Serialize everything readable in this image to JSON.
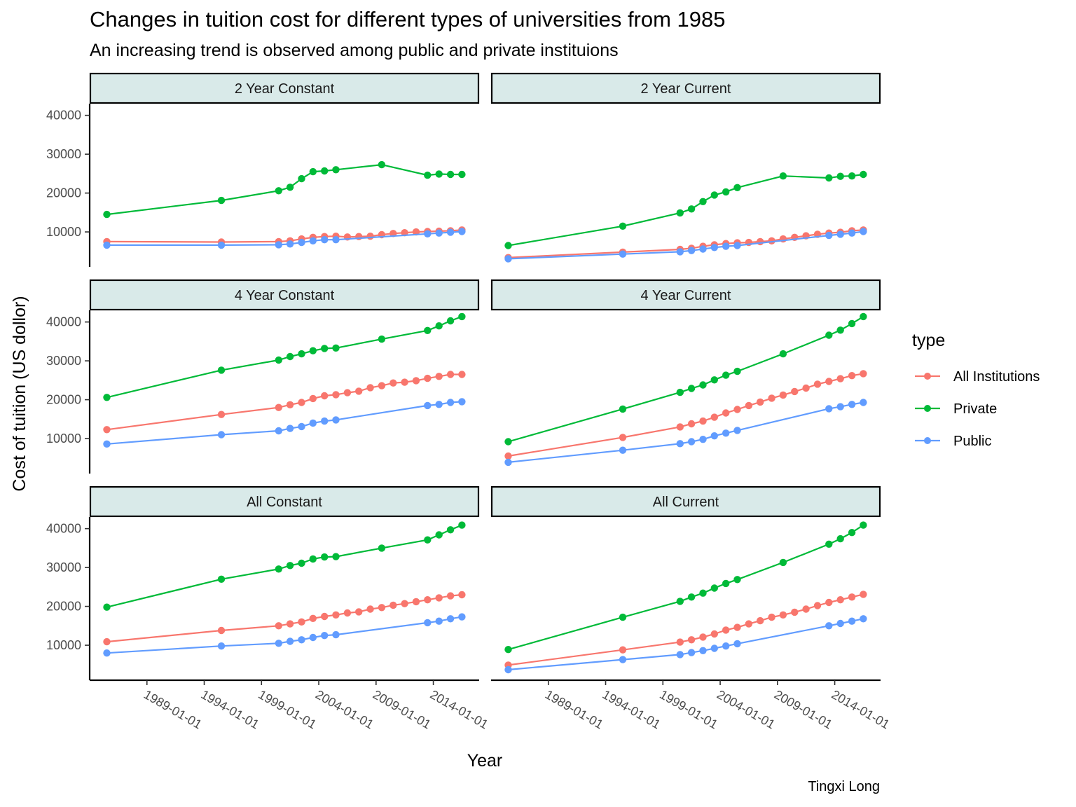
{
  "chart_data": {
    "type": "line",
    "title": "Changes in tuition cost for different types of universities from 1985",
    "subtitle": "An increasing trend is observed among public and private instituions",
    "xlabel": "Year",
    "ylabel": "Cost of tuition (US dollor)",
    "caption": "Tingxi Long",
    "x_ticks": [
      "1989-01-01",
      "1994-01-01",
      "1999-01-01",
      "2004-01-01",
      "2009-01-01",
      "2014-01-01"
    ],
    "y_ticks": [
      10000,
      20000,
      30000,
      40000
    ],
    "ylim": [
      1000,
      43000
    ],
    "xlim": [
      "1984-01-01",
      "2018-01-01"
    ],
    "grid": false,
    "legend": {
      "title": "type",
      "position": "right",
      "entries": [
        "All Institutions",
        "Private",
        "Public"
      ],
      "colors": {
        "All Institutions": "#F8766D",
        "Private": "#00BA38",
        "Public": "#619CFF"
      }
    },
    "panels": [
      {
        "name": "2 Year Constant",
        "series": [
          {
            "name": "All Institutions",
            "x": [
              "1985-07-01",
              "1995-07-01",
              "2000-07-01",
              "2001-07-01",
              "2002-07-01",
              "2003-07-01",
              "2004-07-01",
              "2005-07-01",
              "2006-07-01",
              "2007-07-01",
              "2008-07-01",
              "2009-07-01",
              "2010-07-01",
              "2011-07-01",
              "2012-07-01",
              "2013-07-01",
              "2014-07-01",
              "2015-07-01",
              "2016-07-01"
            ],
            "y": [
              7500,
              7400,
              7500,
              7700,
              8200,
              8600,
              8800,
              8900,
              8700,
              8800,
              8900,
              9300,
              9600,
              9800,
              10000,
              10100,
              10200,
              10300,
              10500
            ]
          },
          {
            "name": "Private",
            "x": [
              "1985-07-01",
              "1995-07-01",
              "2000-07-01",
              "2001-07-01",
              "2002-07-01",
              "2003-07-01",
              "2004-07-01",
              "2005-07-01",
              "2009-07-01",
              "2013-07-01",
              "2014-07-01",
              "2015-07-01",
              "2016-07-01"
            ],
            "y": [
              14500,
              18100,
              20600,
              21500,
              23700,
              25500,
              25700,
              26000,
              27300,
              24600,
              24900,
              24800,
              24800
            ]
          },
          {
            "name": "Public",
            "x": [
              "1985-07-01",
              "1995-07-01",
              "2000-07-01",
              "2001-07-01",
              "2002-07-01",
              "2003-07-01",
              "2004-07-01",
              "2005-07-01",
              "2013-07-01",
              "2014-07-01",
              "2015-07-01",
              "2016-07-01"
            ],
            "y": [
              6600,
              6600,
              6700,
              6900,
              7300,
              7700,
              8000,
              8000,
              9500,
              9700,
              9900,
              10100
            ]
          }
        ]
      },
      {
        "name": "2 Year Current",
        "series": [
          {
            "name": "All Institutions",
            "x": [
              "1985-07-01",
              "1995-07-01",
              "2000-07-01",
              "2001-07-01",
              "2002-07-01",
              "2003-07-01",
              "2004-07-01",
              "2005-07-01",
              "2006-07-01",
              "2007-07-01",
              "2008-07-01",
              "2009-07-01",
              "2010-07-01",
              "2011-07-01",
              "2012-07-01",
              "2013-07-01",
              "2014-07-01",
              "2015-07-01",
              "2016-07-01"
            ],
            "y": [
              3400,
              4800,
              5500,
              5800,
              6300,
              6700,
              7000,
              7200,
              7300,
              7500,
              7700,
              8200,
              8600,
              9000,
              9400,
              9700,
              9900,
              10300,
              10500
            ]
          },
          {
            "name": "Private",
            "x": [
              "1985-07-01",
              "1995-07-01",
              "2000-07-01",
              "2001-07-01",
              "2002-07-01",
              "2003-07-01",
              "2004-07-01",
              "2005-07-01",
              "2009-07-01",
              "2013-07-01",
              "2014-07-01",
              "2015-07-01",
              "2016-07-01"
            ],
            "y": [
              6500,
              11500,
              14900,
              15900,
              17800,
              19500,
              20300,
              21400,
              24400,
              23900,
              24300,
              24400,
              24800
            ]
          },
          {
            "name": "Public",
            "x": [
              "1985-07-01",
              "1995-07-01",
              "2000-07-01",
              "2001-07-01",
              "2002-07-01",
              "2003-07-01",
              "2004-07-01",
              "2005-07-01",
              "2013-07-01",
              "2014-07-01",
              "2015-07-01",
              "2016-07-01"
            ],
            "y": [
              3100,
              4300,
              4900,
              5200,
              5600,
              6000,
              6300,
              6500,
              9100,
              9400,
              9700,
              10100
            ]
          }
        ]
      },
      {
        "name": "4 Year Constant",
        "series": [
          {
            "name": "All Institutions",
            "x": [
              "1985-07-01",
              "1995-07-01",
              "2000-07-01",
              "2001-07-01",
              "2002-07-01",
              "2003-07-01",
              "2004-07-01",
              "2005-07-01",
              "2006-07-01",
              "2007-07-01",
              "2008-07-01",
              "2009-07-01",
              "2010-07-01",
              "2011-07-01",
              "2012-07-01",
              "2013-07-01",
              "2014-07-01",
              "2015-07-01",
              "2016-07-01"
            ],
            "y": [
              12300,
              16200,
              18000,
              18700,
              19300,
              20300,
              21000,
              21300,
              21800,
              22200,
              23100,
              23600,
              24300,
              24500,
              24900,
              25500,
              26000,
              26500,
              26500
            ]
          },
          {
            "name": "Private",
            "x": [
              "1985-07-01",
              "1995-07-01",
              "2000-07-01",
              "2001-07-01",
              "2002-07-01",
              "2003-07-01",
              "2004-07-01",
              "2005-07-01",
              "2009-07-01",
              "2013-07-01",
              "2014-07-01",
              "2015-07-01",
              "2016-07-01"
            ],
            "y": [
              20600,
              27600,
              30200,
              31100,
              31800,
              32600,
              33200,
              33300,
              35600,
              37800,
              39000,
              40300,
              41400
            ]
          },
          {
            "name": "Public",
            "x": [
              "1985-07-01",
              "1995-07-01",
              "2000-07-01",
              "2001-07-01",
              "2002-07-01",
              "2003-07-01",
              "2004-07-01",
              "2005-07-01",
              "2013-07-01",
              "2014-07-01",
              "2015-07-01",
              "2016-07-01"
            ],
            "y": [
              8600,
              11000,
              12000,
              12600,
              13100,
              14000,
              14500,
              14800,
              18500,
              18800,
              19300,
              19500
            ]
          }
        ]
      },
      {
        "name": "4 Year Current",
        "series": [
          {
            "name": "All Institutions",
            "x": [
              "1985-07-01",
              "1995-07-01",
              "2000-07-01",
              "2001-07-01",
              "2002-07-01",
              "2003-07-01",
              "2004-07-01",
              "2005-07-01",
              "2006-07-01",
              "2007-07-01",
              "2008-07-01",
              "2009-07-01",
              "2010-07-01",
              "2011-07-01",
              "2012-07-01",
              "2013-07-01",
              "2014-07-01",
              "2015-07-01",
              "2016-07-01"
            ],
            "y": [
              5500,
              10300,
              13000,
              13800,
              14500,
              15500,
              16600,
              17500,
              18500,
              19400,
              20400,
              21200,
              22100,
              23000,
              24000,
              24700,
              25400,
              26200,
              26700
            ]
          },
          {
            "name": "Private",
            "x": [
              "1985-07-01",
              "1995-07-01",
              "2000-07-01",
              "2001-07-01",
              "2002-07-01",
              "2003-07-01",
              "2004-07-01",
              "2005-07-01",
              "2009-07-01",
              "2013-07-01",
              "2014-07-01",
              "2015-07-01",
              "2016-07-01"
            ],
            "y": [
              9200,
              17600,
              21900,
              22900,
              23800,
              25100,
              26300,
              27300,
              31800,
              36600,
              37900,
              39600,
              41400
            ]
          },
          {
            "name": "Public",
            "x": [
              "1985-07-01",
              "1995-07-01",
              "2000-07-01",
              "2001-07-01",
              "2002-07-01",
              "2003-07-01",
              "2004-07-01",
              "2005-07-01",
              "2013-07-01",
              "2014-07-01",
              "2015-07-01",
              "2016-07-01"
            ],
            "y": [
              3900,
              7000,
              8700,
              9200,
              9800,
              10700,
              11400,
              12100,
              17700,
              18200,
              18800,
              19300
            ]
          }
        ]
      },
      {
        "name": "All Constant",
        "series": [
          {
            "name": "All Institutions",
            "x": [
              "1985-07-01",
              "1995-07-01",
              "2000-07-01",
              "2001-07-01",
              "2002-07-01",
              "2003-07-01",
              "2004-07-01",
              "2005-07-01",
              "2006-07-01",
              "2007-07-01",
              "2008-07-01",
              "2009-07-01",
              "2010-07-01",
              "2011-07-01",
              "2012-07-01",
              "2013-07-01",
              "2014-07-01",
              "2015-07-01",
              "2016-07-01"
            ],
            "y": [
              10900,
              13800,
              15000,
              15500,
              16000,
              16900,
              17400,
              17800,
              18300,
              18600,
              19300,
              19700,
              20300,
              20700,
              21200,
              21700,
              22200,
              22700,
              23000
            ]
          },
          {
            "name": "Private",
            "x": [
              "1985-07-01",
              "1995-07-01",
              "2000-07-01",
              "2001-07-01",
              "2002-07-01",
              "2003-07-01",
              "2004-07-01",
              "2005-07-01",
              "2009-07-01",
              "2013-07-01",
              "2014-07-01",
              "2015-07-01",
              "2016-07-01"
            ],
            "y": [
              19800,
              27000,
              29600,
              30500,
              31100,
              32200,
              32700,
              32800,
              35000,
              37100,
              38400,
              39700,
              40900
            ]
          },
          {
            "name": "Public",
            "x": [
              "1985-07-01",
              "1995-07-01",
              "2000-07-01",
              "2001-07-01",
              "2002-07-01",
              "2003-07-01",
              "2004-07-01",
              "2005-07-01",
              "2013-07-01",
              "2014-07-01",
              "2015-07-01",
              "2016-07-01"
            ],
            "y": [
              8000,
              9800,
              10500,
              11000,
              11400,
              12000,
              12500,
              12700,
              15800,
              16200,
              16800,
              17300
            ]
          }
        ]
      },
      {
        "name": "All Current",
        "series": [
          {
            "name": "All Institutions",
            "x": [
              "1985-07-01",
              "1995-07-01",
              "2000-07-01",
              "2001-07-01",
              "2002-07-01",
              "2003-07-01",
              "2004-07-01",
              "2005-07-01",
              "2006-07-01",
              "2007-07-01",
              "2008-07-01",
              "2009-07-01",
              "2010-07-01",
              "2011-07-01",
              "2012-07-01",
              "2013-07-01",
              "2014-07-01",
              "2015-07-01",
              "2016-07-01"
            ],
            "y": [
              4900,
              8800,
              10800,
              11400,
              12100,
              12900,
              13900,
              14600,
              15500,
              16300,
              17200,
              17800,
              18500,
              19300,
              20200,
              21000,
              21700,
              22400,
              23100
            ]
          },
          {
            "name": "Private",
            "x": [
              "1985-07-01",
              "1995-07-01",
              "2000-07-01",
              "2001-07-01",
              "2002-07-01",
              "2003-07-01",
              "2004-07-01",
              "2005-07-01",
              "2009-07-01",
              "2013-07-01",
              "2014-07-01",
              "2015-07-01",
              "2016-07-01"
            ],
            "y": [
              8900,
              17200,
              21300,
              22400,
              23400,
              24700,
              25900,
              26900,
              31300,
              36000,
              37400,
              39000,
              40900
            ]
          },
          {
            "name": "Public",
            "x": [
              "1985-07-01",
              "1995-07-01",
              "2000-07-01",
              "2001-07-01",
              "2002-07-01",
              "2003-07-01",
              "2004-07-01",
              "2005-07-01",
              "2013-07-01",
              "2014-07-01",
              "2015-07-01",
              "2016-07-01"
            ],
            "y": [
              3700,
              6300,
              7600,
              8100,
              8600,
              9200,
              9800,
              10400,
              15000,
              15600,
              16200,
              16800
            ]
          }
        ]
      }
    ]
  }
}
